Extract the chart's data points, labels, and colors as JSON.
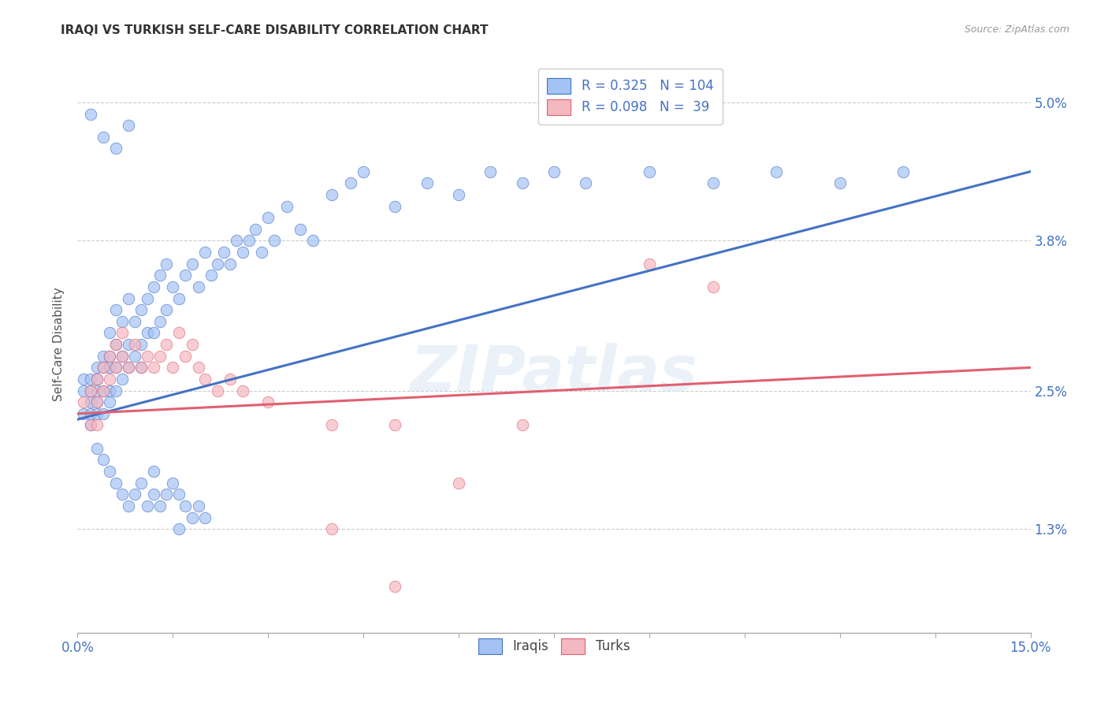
{
  "title": "IRAQI VS TURKISH SELF-CARE DISABILITY CORRELATION CHART",
  "source": "Source: ZipAtlas.com",
  "ylabel": "Self-Care Disability",
  "xlim": [
    0.0,
    0.15
  ],
  "ylim": [
    0.004,
    0.054
  ],
  "yticks": [
    0.013,
    0.025,
    0.038,
    0.05
  ],
  "yticklabels": [
    "1.3%",
    "2.5%",
    "3.8%",
    "5.0%"
  ],
  "iraqi_color": "#a4c2f4",
  "turki_color": "#f4b8c1",
  "iraqi_line_color": "#4472c4",
  "turki_line_color": "#e06070",
  "background_color": "#ffffff",
  "watermark": "ZIPatlas",
  "legend_R_iraqi": "0.325",
  "legend_N_iraqi": "104",
  "legend_R_turki": "0.098",
  "legend_N_turki": " 39",
  "iraqi_trend_x": [
    0.0,
    0.15
  ],
  "iraqi_trend_y": [
    0.0225,
    0.044
  ],
  "turki_trend_x": [
    0.0,
    0.15
  ],
  "turki_trend_y": [
    0.023,
    0.027
  ],
  "iraqi_x": [
    0.001,
    0.001,
    0.001,
    0.002,
    0.002,
    0.002,
    0.002,
    0.002,
    0.003,
    0.003,
    0.003,
    0.003,
    0.003,
    0.004,
    0.004,
    0.004,
    0.004,
    0.005,
    0.005,
    0.005,
    0.005,
    0.005,
    0.006,
    0.006,
    0.006,
    0.006,
    0.007,
    0.007,
    0.007,
    0.008,
    0.008,
    0.008,
    0.009,
    0.009,
    0.01,
    0.01,
    0.01,
    0.011,
    0.011,
    0.012,
    0.012,
    0.013,
    0.013,
    0.014,
    0.014,
    0.015,
    0.016,
    0.017,
    0.018,
    0.019,
    0.02,
    0.021,
    0.022,
    0.023,
    0.024,
    0.025,
    0.026,
    0.027,
    0.028,
    0.029,
    0.03,
    0.031,
    0.033,
    0.035,
    0.037,
    0.04,
    0.043,
    0.045,
    0.05,
    0.055,
    0.06,
    0.065,
    0.07,
    0.075,
    0.08,
    0.09,
    0.1,
    0.11,
    0.12,
    0.13,
    0.003,
    0.004,
    0.005,
    0.006,
    0.007,
    0.008,
    0.009,
    0.01,
    0.011,
    0.012,
    0.013,
    0.014,
    0.015,
    0.016,
    0.017,
    0.018,
    0.019,
    0.02,
    0.002,
    0.004,
    0.006,
    0.008,
    0.012,
    0.016
  ],
  "iraqi_y": [
    0.025,
    0.023,
    0.026,
    0.024,
    0.022,
    0.026,
    0.023,
    0.025,
    0.026,
    0.024,
    0.027,
    0.025,
    0.023,
    0.028,
    0.025,
    0.027,
    0.023,
    0.03,
    0.027,
    0.025,
    0.028,
    0.024,
    0.032,
    0.029,
    0.027,
    0.025,
    0.031,
    0.028,
    0.026,
    0.033,
    0.029,
    0.027,
    0.031,
    0.028,
    0.032,
    0.029,
    0.027,
    0.033,
    0.03,
    0.034,
    0.03,
    0.035,
    0.031,
    0.036,
    0.032,
    0.034,
    0.033,
    0.035,
    0.036,
    0.034,
    0.037,
    0.035,
    0.036,
    0.037,
    0.036,
    0.038,
    0.037,
    0.038,
    0.039,
    0.037,
    0.04,
    0.038,
    0.041,
    0.039,
    0.038,
    0.042,
    0.043,
    0.044,
    0.041,
    0.043,
    0.042,
    0.044,
    0.043,
    0.044,
    0.043,
    0.044,
    0.043,
    0.044,
    0.043,
    0.044,
    0.02,
    0.019,
    0.018,
    0.017,
    0.016,
    0.015,
    0.016,
    0.017,
    0.015,
    0.016,
    0.015,
    0.016,
    0.017,
    0.016,
    0.015,
    0.014,
    0.015,
    0.014,
    0.049,
    0.047,
    0.046,
    0.048,
    0.018,
    0.013
  ],
  "turki_x": [
    0.001,
    0.002,
    0.002,
    0.003,
    0.003,
    0.003,
    0.004,
    0.004,
    0.005,
    0.005,
    0.006,
    0.006,
    0.007,
    0.007,
    0.008,
    0.009,
    0.01,
    0.011,
    0.012,
    0.013,
    0.014,
    0.015,
    0.016,
    0.017,
    0.018,
    0.019,
    0.02,
    0.022,
    0.024,
    0.026,
    0.03,
    0.04,
    0.05,
    0.06,
    0.07,
    0.09,
    0.1,
    0.04,
    0.05
  ],
  "turki_y": [
    0.024,
    0.025,
    0.022,
    0.026,
    0.024,
    0.022,
    0.027,
    0.025,
    0.028,
    0.026,
    0.029,
    0.027,
    0.03,
    0.028,
    0.027,
    0.029,
    0.027,
    0.028,
    0.027,
    0.028,
    0.029,
    0.027,
    0.03,
    0.028,
    0.029,
    0.027,
    0.026,
    0.025,
    0.026,
    0.025,
    0.024,
    0.022,
    0.022,
    0.017,
    0.022,
    0.036,
    0.034,
    0.013,
    0.008
  ]
}
